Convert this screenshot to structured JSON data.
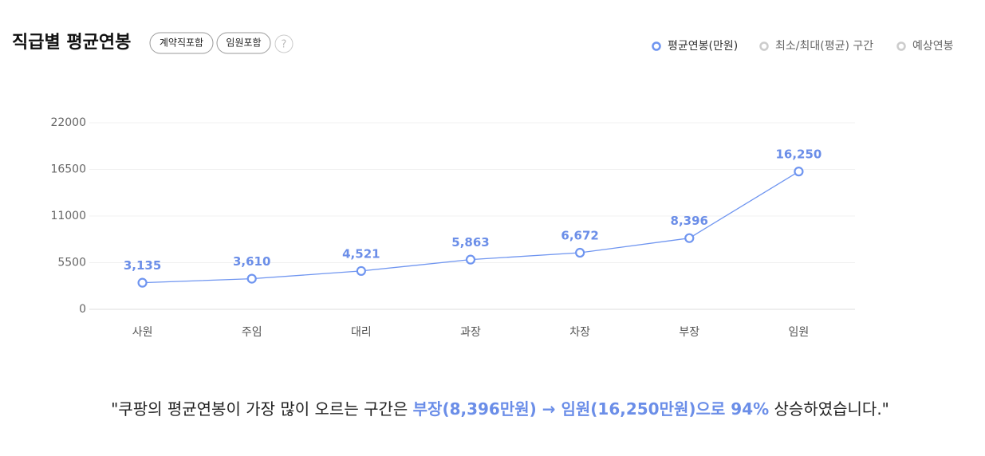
{
  "header": {
    "title": "직급별 평균연봉",
    "badges": [
      "계약직포함",
      "임원포함"
    ],
    "help": "?"
  },
  "chart_data": {
    "type": "line",
    "categories": [
      "사원",
      "주임",
      "대리",
      "과장",
      "차장",
      "부장",
      "임원"
    ],
    "series": [
      {
        "name": "평균연봉(만원)",
        "color": "#6f95f0",
        "values": [
          3135,
          3610,
          4521,
          5863,
          6672,
          8396,
          16250
        ],
        "value_labels": [
          "3,135",
          "3,610",
          "4,521",
          "5,863",
          "6,672",
          "8,396",
          "16,250"
        ]
      }
    ],
    "other_legend_entries": [
      {
        "name": "최소/최대(평균) 구간",
        "color": "#cccccc"
      },
      {
        "name": "예상연봉",
        "color": "#cccccc"
      }
    ],
    "ylim": [
      0,
      22000
    ],
    "yticks": [
      0,
      5500,
      11000,
      16500,
      22000
    ],
    "grid": true,
    "legend": "top-right"
  },
  "summary": {
    "prefix": "\"쿠팡의 평균연봉이 가장 많이 오르는 구간은 ",
    "highlight": "부장(8,396만원) → 임원(16,250만원)으로 94%",
    "suffix": " 상승하였습니다.\""
  }
}
